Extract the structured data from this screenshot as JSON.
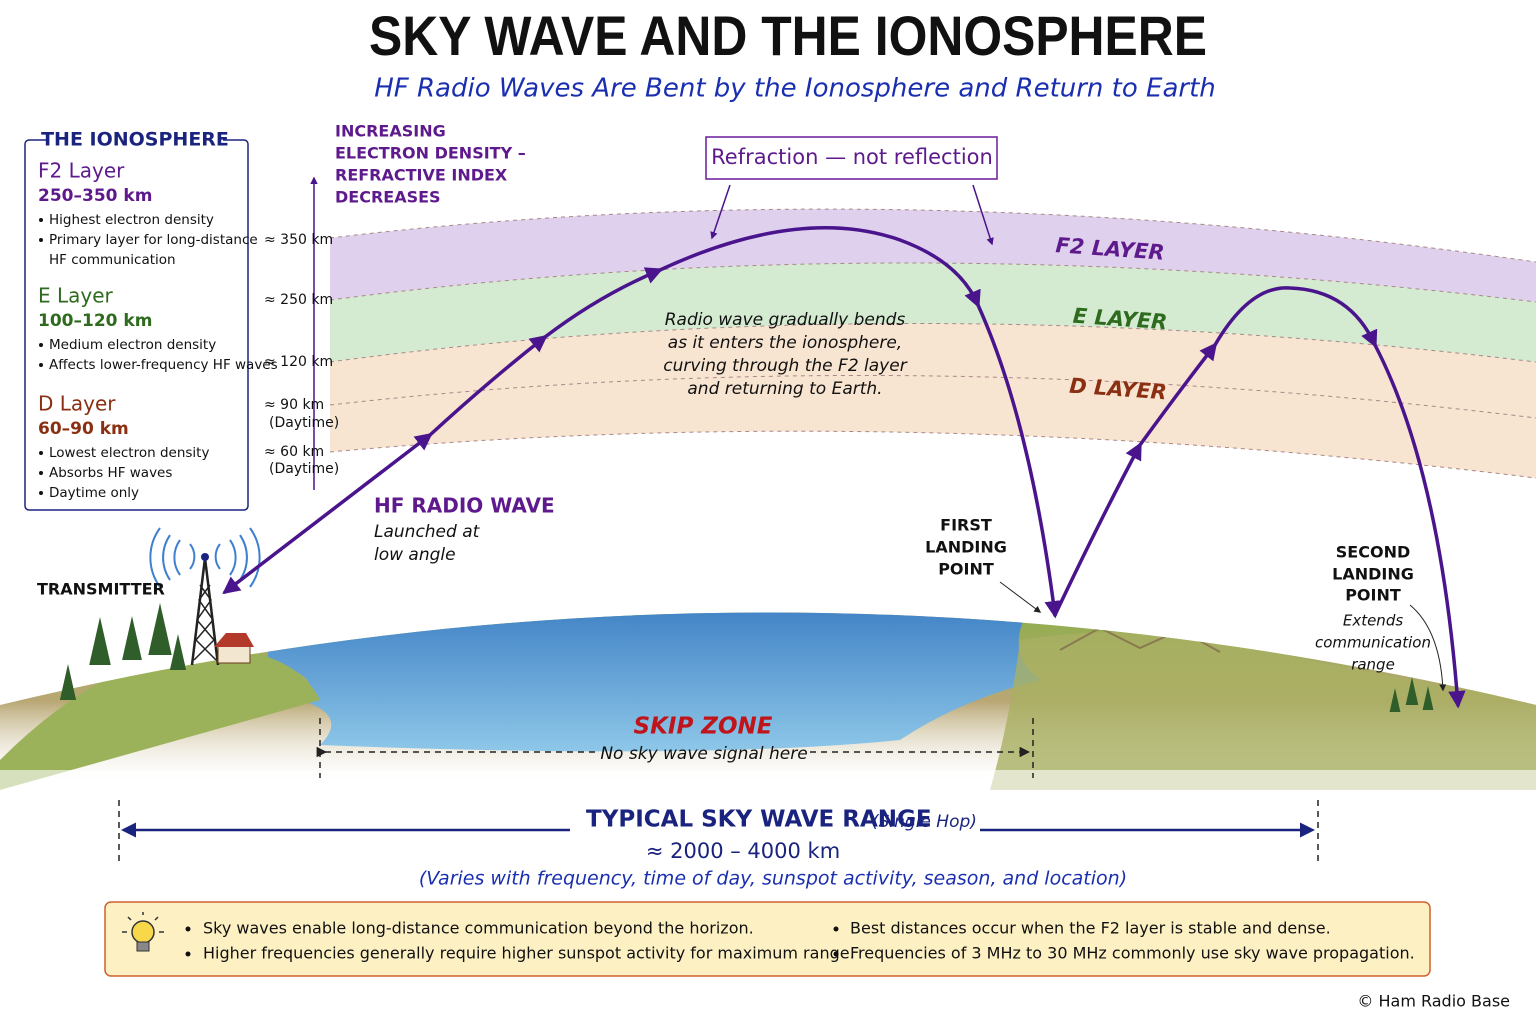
{
  "header": {
    "title": "SKY WAVE AND THE IONOSPHERE",
    "subtitle": "HF Radio Waves Are Bent by the Ionosphere and Return to Earth"
  },
  "legend_box": {
    "title": "THE IONOSPHERE",
    "layers": [
      {
        "name": "F2 Layer",
        "range": "250–350 km",
        "notes": [
          "Highest electron density",
          [
            "Primary layer for long-distance",
            "HF communication"
          ]
        ]
      },
      {
        "name": "E Layer",
        "range": "100–120 km",
        "notes": [
          "Medium electron density",
          "Affects lower-frequency HF waves"
        ]
      },
      {
        "name": "D Layer",
        "range": "60–90 km",
        "notes": [
          "Lowest electron density",
          "Absorbs HF waves",
          "Daytime only"
        ]
      }
    ]
  },
  "altitude_axis": {
    "label": [
      "INCREASING",
      "ELECTRON DENSITY –",
      "REFRACTIVE INDEX",
      "DECREASES"
    ],
    "ticks": [
      {
        "label": "≈ 350 km"
      },
      {
        "label": "≈ 250 km"
      },
      {
        "label": "≈ 120 km"
      },
      {
        "label": "≈ 90 km",
        "note": "(Daytime)"
      },
      {
        "label": "≈ 60 km",
        "note": "(Daytime)"
      }
    ]
  },
  "callout": "Refraction — not reflection",
  "layer_labels": [
    "F2 LAYER",
    "E LAYER",
    "D LAYER"
  ],
  "explanation": [
    "Radio wave gradually bends",
    "as it enters the ionosphere,",
    "curving through the F2 layer",
    "and returning to Earth."
  ],
  "wave": {
    "title": "HF RADIO WAVE",
    "note": [
      "Launched at",
      "low angle"
    ]
  },
  "transmitter": "TRANSMITTER",
  "first_landing": [
    "FIRST",
    "LANDING",
    "POINT"
  ],
  "second_landing": {
    "title": [
      "SECOND",
      "LANDING",
      "POINT"
    ],
    "note": [
      "Extends",
      "communication",
      "range"
    ]
  },
  "skip_zone": {
    "title": "SKIP ZONE",
    "note": "No sky wave signal here"
  },
  "range": {
    "title": "TYPICAL SKY WAVE RANGE",
    "qualifier": "(Single Hop)",
    "value": "≈ 2000 – 4000 km",
    "note": "(Varies with frequency, time of day, sunspot activity, season, and location)"
  },
  "tips": [
    "Sky waves enable long-distance communication beyond the horizon.",
    "Higher frequencies generally require higher sunspot activity for maximum range.",
    "Best distances occur when the F2 layer is stable and dense.",
    "Frequencies of 3 MHz to 30 MHz commonly use sky wave propagation."
  ],
  "footer": "© Ham Radio Base"
}
